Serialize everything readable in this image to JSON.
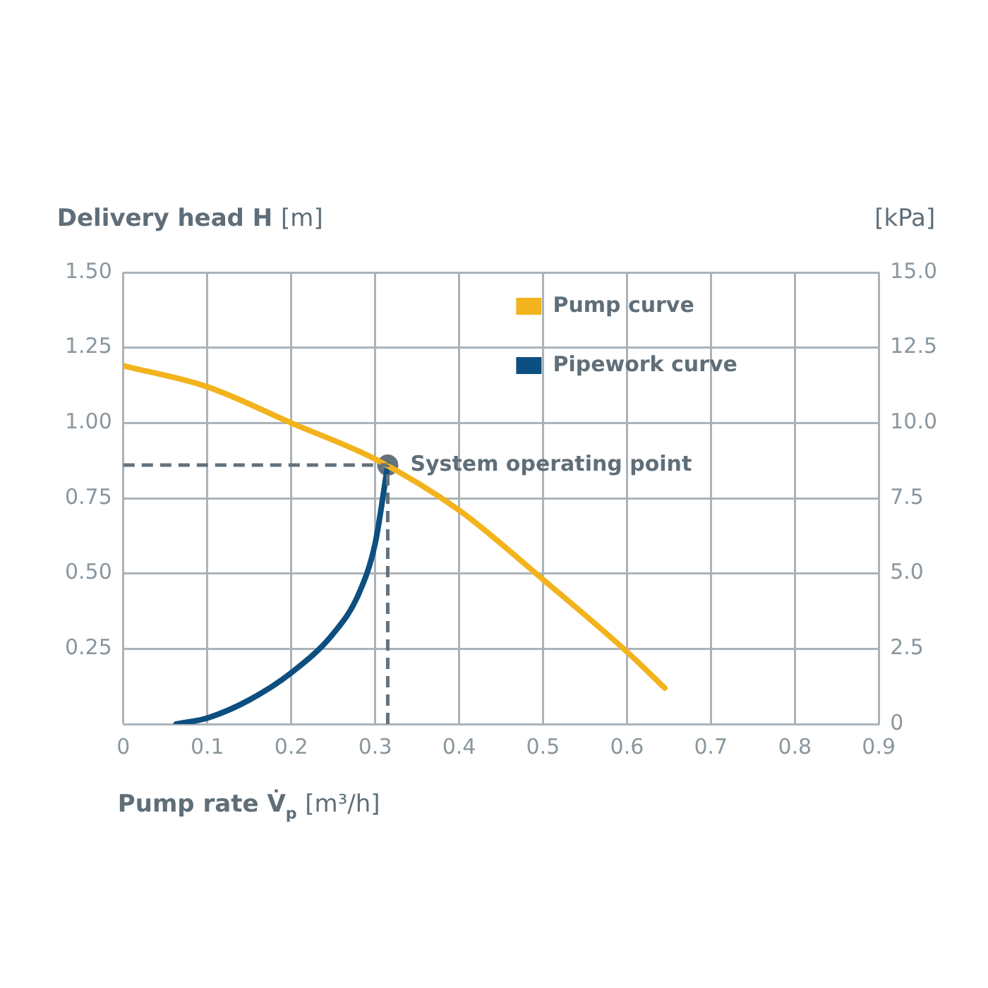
{
  "chart_data": {
    "type": "line",
    "ylabel": "Delivery head H [m]",
    "y2label": "[kPa]",
    "xlabel": "Pump rate V̇$_{p}$ [m³/h]",
    "xlim": [
      0,
      0.9
    ],
    "xticks": [
      0,
      0.1,
      0.2,
      0.3,
      0.4,
      0.5,
      0.6,
      0.7,
      0.8,
      0.9
    ],
    "ylim": [
      0,
      1.5
    ],
    "yticks": [
      {
        "value": 0,
        "label": null
      },
      0.25,
      {
        "value": 0.5,
        "label": "0.50"
      },
      0.75,
      {
        "value": 1,
        "label": "1.00"
      },
      1.25,
      {
        "value": 1.5,
        "label": "1.50"
      }
    ],
    "y2lim": [
      0,
      15
    ],
    "y2ticks": [
      0,
      2.5,
      {
        "value": 5,
        "label": "5.0"
      },
      7.5,
      {
        "value": 10,
        "label": "10.0"
      },
      12.5,
      {
        "value": 15,
        "label": "15.0"
      }
    ],
    "grid": true,
    "legend": "top right",
    "marker": "none",
    "line_style": "solid",
    "series": [
      {
        "name": "Pump curve",
        "color": "#f2b31c",
        "x": [
          0,
          0.1,
          0.2,
          0.3,
          0.4,
          0.5,
          0.6,
          0.645
        ],
        "values": [
          1.19,
          1.12,
          1.0,
          0.88,
          0.71,
          0.48,
          0.24,
          0.12
        ]
      },
      {
        "name": "Pipework curve",
        "color": "#0c4f80",
        "x": [
          0.063,
          0.1,
          0.15,
          0.2,
          0.25,
          0.28,
          0.3,
          0.315
        ],
        "values": [
          0,
          0.02,
          0.08,
          0.17,
          0.3,
          0.43,
          0.6,
          0.86
        ]
      },
      {
        "type": "scatter",
        "marker": "circle",
        "color": "#64727c",
        "x": [
          0.315
        ],
        "values": [
          0.86
        ]
      }
    ],
    "ref_lines": [
      {
        "axis": "x",
        "value": 0.315,
        "color": "#64727c",
        "line_style": "dashed"
      },
      {
        "axis": "y",
        "value": 0.86,
        "color": "#64727c",
        "line_style": "dashed"
      }
    ],
    "annotations": [
      {
        "text": "System operating point",
        "x": 0.315,
        "y": 0.86
      }
    ]
  }
}
